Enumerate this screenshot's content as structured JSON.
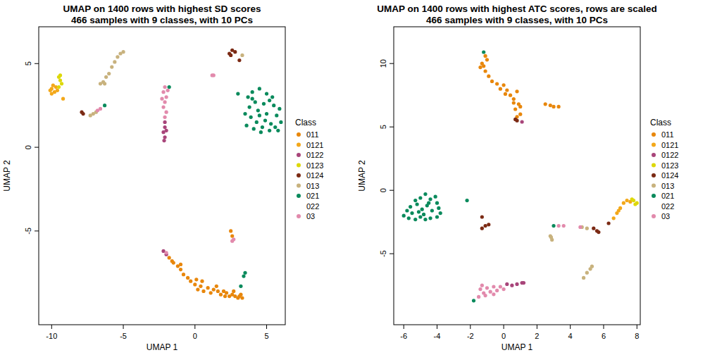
{
  "chart_data": [
    {
      "type": "scatter",
      "title": "UMAP on 1400 rows with highest SD scores",
      "subtitle": "466 samples with 9 classes, with 10 PCs",
      "x_label": "UMAP 1",
      "y_label": "UMAP 2",
      "legend_title": "Class",
      "legend": "right",
      "xlim": [
        -10.9,
        6.3
      ],
      "ylim": [
        -10.6,
        7.2
      ],
      "xticks": [
        -10,
        -5,
        0,
        5
      ],
      "yticks": [
        -5,
        0,
        5
      ],
      "series": [
        {
          "name": "011",
          "color": "#E8870C",
          "x": [
            -1.8,
            -1.5,
            -1.2,
            -1,
            -0.8,
            -0.5,
            -0.3,
            0,
            0.2,
            0.4,
            0.6,
            0.9,
            1.1,
            1.3,
            1.6,
            1.8,
            2.0,
            2.2,
            2.4,
            2.6,
            2.8,
            3.0,
            3.2,
            3.3,
            -1.6,
            -1.0,
            0.1,
            0.5,
            1.5,
            2.1,
            2.7,
            3.1,
            2.5,
            2.6
          ],
          "values": [
            -6.6,
            -6.9,
            -7.1,
            -7.3,
            -7.6,
            -7.8,
            -8.0,
            -8.2,
            -8.5,
            -8.3,
            -8.6,
            -8.4,
            -8.7,
            -8.5,
            -8.6,
            -8.8,
            -8.6,
            -8.7,
            -8.9,
            -8.8,
            -8.9,
            -9.0,
            -8.8,
            -9.0,
            -6.8,
            -7.0,
            -7.9,
            -8.0,
            -8.3,
            -8.9,
            -8.6,
            -8.9,
            -5.0,
            -5.3
          ]
        },
        {
          "name": "0121",
          "color": "#F3A81A",
          "x": [
            -10,
            -9.9,
            -10.1,
            -9.8,
            -9.7,
            -10,
            -9.6,
            -9.2
          ],
          "values": [
            3.5,
            3.7,
            3.4,
            3.3,
            3.6,
            3.2,
            3.4,
            2.9
          ]
        },
        {
          "name": "0122",
          "color": "#A8457A",
          "x": [
            -2.1,
            -2.1,
            -2.2,
            -2.1,
            -2.15,
            -2.0,
            -2.2,
            -2.0
          ],
          "values": [
            1.5,
            1.2,
            0.9,
            0.6,
            0.4,
            1.0,
            -6.2,
            -6.4
          ]
        },
        {
          "name": "0123",
          "color": "#DDD80A",
          "x": [
            -9.5,
            -9.4,
            -9.3,
            -9.5,
            -9.4
          ],
          "values": [
            4.2,
            4.0,
            3.8,
            3.6,
            4.3
          ]
        },
        {
          "name": "0124",
          "color": "#7B2A14",
          "x": [
            -7.9,
            -7.8,
            2.4,
            2.6,
            2.8,
            2.5,
            3.1
          ],
          "values": [
            2.1,
            2.0,
            5.6,
            5.8,
            5.7,
            5.5,
            5.2
          ]
        },
        {
          "name": "013",
          "color": "#C8B27E",
          "x": [
            -7.3,
            -7.1,
            -6.9,
            -6.6,
            -6.4,
            -6.2,
            -6.0,
            -5.8,
            -5.6,
            -5.4,
            -5.2,
            -5.0,
            -6.3,
            3.3
          ],
          "values": [
            1.9,
            2.0,
            2.1,
            3.8,
            3.9,
            4.2,
            4.4,
            4.8,
            5.1,
            5.4,
            5.6,
            5.7,
            3.8,
            5.5
          ]
        },
        {
          "name": "021",
          "color": "#0A8A5C",
          "x": [
            3.0,
            3.7,
            4.0,
            4.5,
            5.0,
            5.4,
            4.2,
            4.8,
            5.5,
            3.8,
            4.4,
            5.0,
            5.7,
            6.0,
            3.9,
            4.3,
            4.7,
            5.2,
            5.6,
            4.1,
            4.9,
            5.9,
            3.5,
            4.6,
            5.3,
            4.0,
            5.2,
            4.5,
            5.8,
            3.6,
            -1.8,
            -6.3,
            3.4,
            3.2,
            3.5
          ],
          "values": [
            3.2,
            3.0,
            3.3,
            3.5,
            3.2,
            3.0,
            2.7,
            2.6,
            2.5,
            2.4,
            2.2,
            2.0,
            1.9,
            1.5,
            1.8,
            1.5,
            1.2,
            1.0,
            1.2,
            1.1,
            1.6,
            2.3,
            2.0,
            0.9,
            1.4,
            2.9,
            2.8,
            1.9,
            1.0,
            1.3,
            3.6,
            2.5,
            -7.7,
            -8.3,
            -7.5
          ]
        },
        {
          "name": "022",
          "color": "#FFFFFF",
          "x": [],
          "values": []
        },
        {
          "name": "03",
          "color": "#E28AAC",
          "x": [
            -2.1,
            -2.2,
            -2.0,
            -2.1,
            -2.2,
            -2.0,
            -2.1,
            -1.9,
            -2.3,
            -6.6,
            -6.8,
            1.3,
            1.2,
            2.7,
            2.6,
            -2.0
          ],
          "values": [
            3.6,
            3.3,
            3.0,
            2.7,
            2.4,
            2.1,
            1.8,
            3.4,
            2.9,
            2.3,
            2.2,
            4.3,
            4.3,
            -5.5,
            -5.6,
            -6.3
          ]
        }
      ]
    },
    {
      "type": "scatter",
      "title": "UMAP on 1400 rows with highest ATC scores, rows are scaled",
      "subtitle": "466 samples with 9 classes, with 10 PCs",
      "x_label": "UMAP 1",
      "y_label": "UMAP 2",
      "legend_title": "Class",
      "legend": "right",
      "xlim": [
        -6.6,
        8.2
      ],
      "ylim": [
        -10.6,
        12.9
      ],
      "xticks": [
        -6,
        -4,
        -2,
        0,
        2,
        4,
        6,
        8
      ],
      "yticks": [
        -5,
        0,
        5,
        10
      ],
      "series": [
        {
          "name": "011",
          "color": "#E8870C",
          "x": [
            -1.3,
            -1.4,
            -1.1,
            -1.2,
            -1.0,
            -0.9,
            -0.7,
            -0.4,
            -0.2,
            0,
            0.2,
            0.4,
            0.6,
            0.8,
            0.9,
            0.7,
            1.0,
            0.8,
            1.0,
            0.6,
            2.5,
            2.8,
            3.0,
            3.3,
            -1.1,
            0.1
          ],
          "values": [
            10.0,
            9.7,
            9.4,
            9.8,
            10.3,
            9.0,
            8.6,
            8.4,
            8.0,
            8.3,
            7.9,
            7.5,
            7.2,
            7.8,
            6.8,
            6.4,
            6.0,
            5.8,
            6.6,
            6.9,
            6.8,
            6.7,
            6.6,
            6.6,
            10.6,
            7.6
          ]
        },
        {
          "name": "0121",
          "color": "#F3A81A",
          "x": [
            6.6,
            6.8,
            7.0,
            7.2,
            7.4,
            7.6,
            6.9
          ],
          "values": [
            -2.2,
            -1.8,
            -1.4,
            -1.0,
            -0.8,
            -0.9,
            -1.6
          ]
        },
        {
          "name": "0122",
          "color": "#A8457A",
          "x": [
            1.1,
            0.2,
            0.5,
            0.8,
            1.1,
            1.2
          ],
          "values": [
            5.4,
            -7.4,
            -7.5,
            -7.4,
            -7.3,
            -7.3
          ]
        },
        {
          "name": "0123",
          "color": "#DDD80A",
          "x": [
            7.8,
            8.0,
            7.9,
            7.7
          ],
          "values": [
            -0.8,
            -1.0,
            -1.1,
            -0.7
          ]
        },
        {
          "name": "0124",
          "color": "#7B2A14",
          "x": [
            0.8,
            0.7,
            -1.3,
            -1.1,
            -1.3,
            -0.9,
            5.6,
            5.4,
            5.7,
            6.3
          ],
          "values": [
            5.5,
            5.6,
            -2.1,
            -2.8,
            -3.0,
            -2.7,
            -3.2,
            -3.0,
            -3.3,
            -2.6
          ]
        },
        {
          "name": "013",
          "color": "#C8B27E",
          "x": [
            2.8,
            2.9,
            2.85,
            4.8,
            5.0,
            5.2,
            5.3,
            4.7,
            5.0
          ],
          "values": [
            -3.6,
            -3.9,
            -3.7,
            -6.9,
            -6.5,
            -6.2,
            -6.0,
            -2.9,
            -3.0
          ]
        },
        {
          "name": "021",
          "color": "#0A8A5C",
          "x": [
            -6.0,
            -5.7,
            -5.5,
            -5.3,
            -5.0,
            -4.7,
            -4.4,
            -4.0,
            -3.8,
            -5.6,
            -5.2,
            -4.9,
            -4.6,
            -4.3,
            -4.0,
            -5.0,
            -4.7,
            -4.4,
            -5.3,
            -4.1,
            -5.8,
            -4.8,
            -3.9,
            -5.1,
            -4.5,
            -2.2,
            -1.2,
            3.0,
            -1.8
          ],
          "values": [
            -2.0,
            -2.2,
            -1.8,
            -2.3,
            -2.1,
            -2.3,
            -2.2,
            -2.1,
            -1.8,
            -1.3,
            -1.1,
            -1.5,
            -1.2,
            -1.6,
            -1.0,
            -0.6,
            -0.3,
            -0.7,
            -0.8,
            -0.5,
            -1.6,
            -1.9,
            -1.4,
            -1.7,
            -1.0,
            -0.8,
            10.9,
            -2.8,
            -8.7
          ]
        },
        {
          "name": "022",
          "color": "#FFFFFF",
          "x": [],
          "values": []
        },
        {
          "name": "03",
          "color": "#E28AAC",
          "x": [
            -1.4,
            -1.2,
            -1.0,
            -0.8,
            -0.6,
            -0.4,
            -0.2,
            -1.5,
            -1.1,
            -0.6,
            0,
            -1.3,
            3.3,
            3.6,
            4.6
          ],
          "values": [
            -7.8,
            -8.1,
            -7.7,
            -8.0,
            -7.6,
            -7.9,
            -7.6,
            -8.4,
            -8.3,
            -8.2,
            -7.8,
            -7.5,
            -2.8,
            -2.8,
            -2.9
          ]
        }
      ]
    }
  ]
}
